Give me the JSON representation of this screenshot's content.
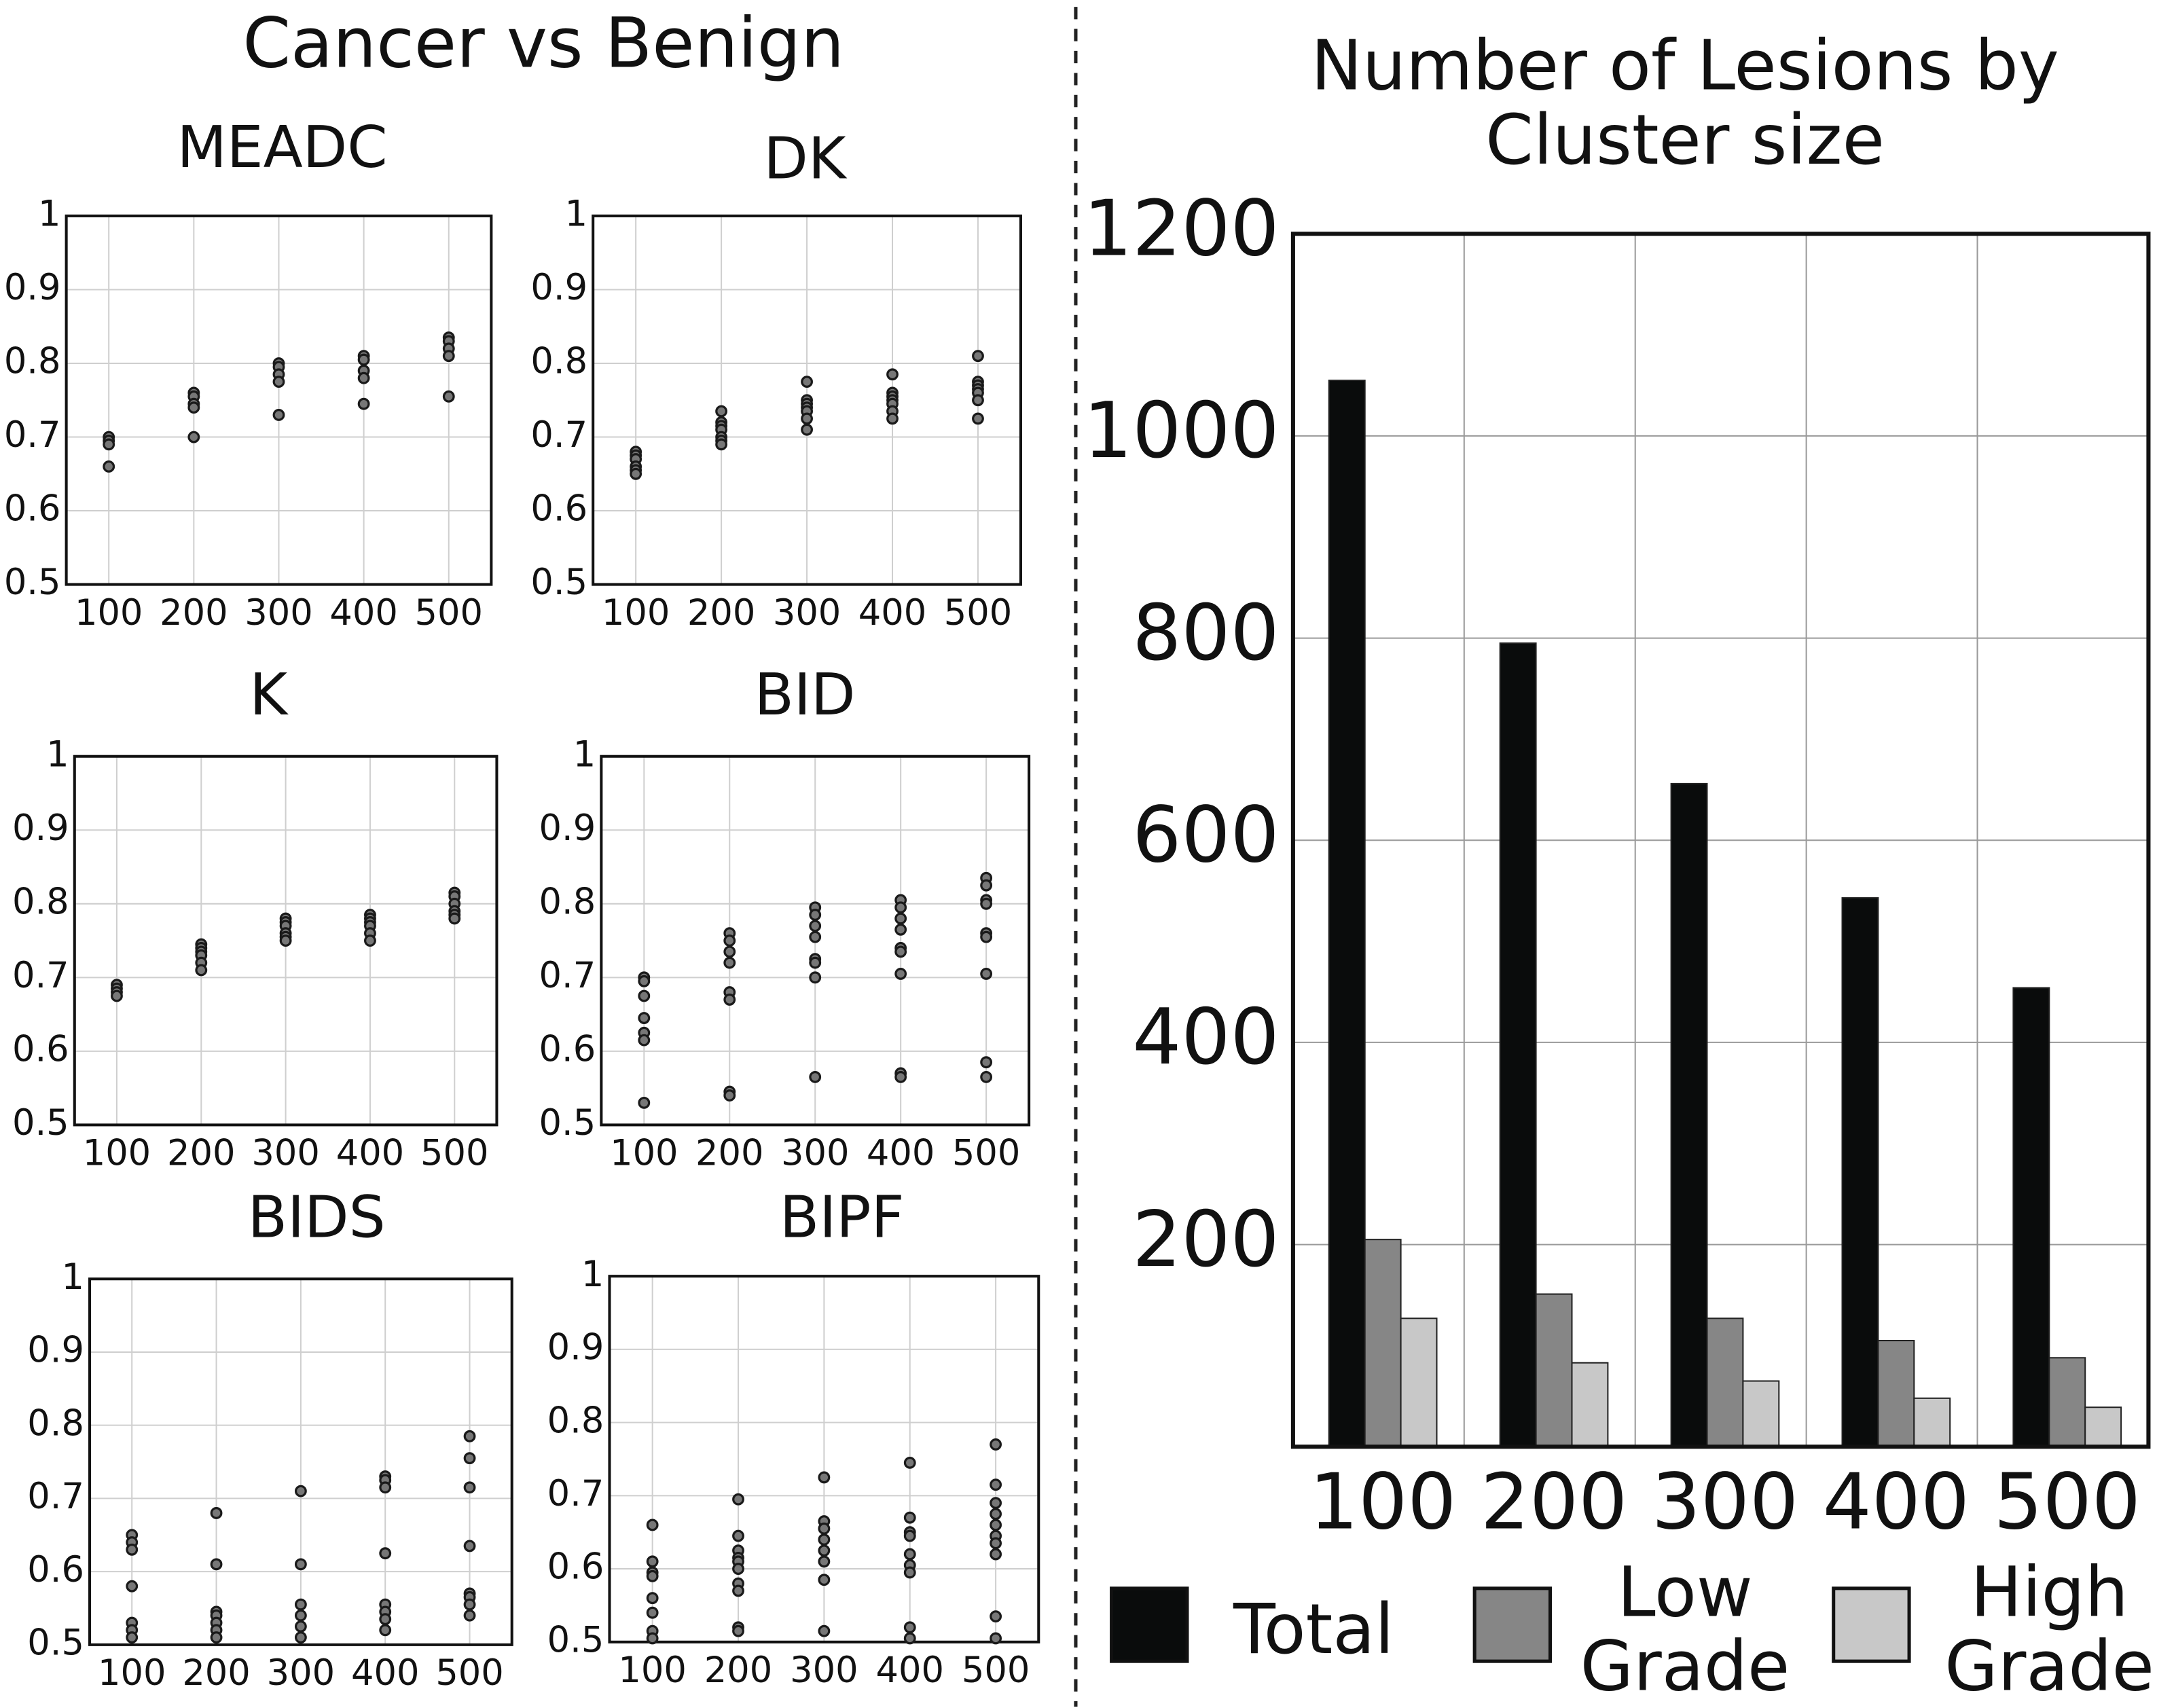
{
  "panel_title": "Cancer vs Benign",
  "chart_data": [
    {
      "type": "scatter",
      "title": "MEADC",
      "x": [
        100,
        100,
        100,
        100,
        200,
        200,
        200,
        200,
        200,
        300,
        300,
        300,
        300,
        300,
        400,
        400,
        400,
        400,
        400,
        500,
        500,
        500,
        500,
        500
      ],
      "values": [
        0.7,
        0.695,
        0.69,
        0.66,
        0.76,
        0.755,
        0.745,
        0.74,
        0.7,
        0.8,
        0.795,
        0.785,
        0.775,
        0.73,
        0.81,
        0.805,
        0.79,
        0.78,
        0.745,
        0.835,
        0.83,
        0.82,
        0.81,
        0.755
      ],
      "xlim": [
        50,
        550
      ],
      "ylim": [
        0.5,
        1
      ],
      "xticks": [
        100,
        200,
        300,
        400,
        500
      ],
      "yticks": [
        0.5,
        0.6,
        0.7,
        0.8,
        0.9,
        1
      ],
      "grid": true
    },
    {
      "type": "scatter",
      "title": "DK",
      "x": [
        100,
        100,
        100,
        100,
        100,
        100,
        200,
        200,
        200,
        200,
        200,
        200,
        200,
        300,
        300,
        300,
        300,
        300,
        300,
        300,
        400,
        400,
        400,
        400,
        400,
        400,
        400,
        500,
        500,
        500,
        500,
        500,
        500,
        500
      ],
      "values": [
        0.68,
        0.675,
        0.67,
        0.66,
        0.655,
        0.65,
        0.735,
        0.72,
        0.715,
        0.71,
        0.7,
        0.695,
        0.69,
        0.775,
        0.75,
        0.745,
        0.74,
        0.735,
        0.725,
        0.71,
        0.785,
        0.76,
        0.755,
        0.75,
        0.745,
        0.735,
        0.725,
        0.81,
        0.775,
        0.77,
        0.765,
        0.76,
        0.75,
        0.725
      ],
      "xlim": [
        50,
        550
      ],
      "ylim": [
        0.5,
        1
      ],
      "xticks": [
        100,
        200,
        300,
        400,
        500
      ],
      "yticks": [
        0.5,
        0.6,
        0.7,
        0.8,
        0.9,
        1
      ],
      "grid": true
    },
    {
      "type": "scatter",
      "title": "K",
      "x": [
        100,
        100,
        100,
        100,
        200,
        200,
        200,
        200,
        200,
        200,
        300,
        300,
        300,
        300,
        300,
        300,
        400,
        400,
        400,
        400,
        400,
        400,
        500,
        500,
        500,
        500,
        500,
        500
      ],
      "values": [
        0.69,
        0.685,
        0.68,
        0.675,
        0.745,
        0.74,
        0.735,
        0.73,
        0.72,
        0.71,
        0.78,
        0.775,
        0.77,
        0.76,
        0.755,
        0.75,
        0.785,
        0.78,
        0.775,
        0.77,
        0.76,
        0.75,
        0.815,
        0.81,
        0.8,
        0.79,
        0.785,
        0.78
      ],
      "xlim": [
        50,
        550
      ],
      "ylim": [
        0.5,
        1
      ],
      "xticks": [
        100,
        200,
        300,
        400,
        500
      ],
      "yticks": [
        0.5,
        0.6,
        0.7,
        0.8,
        0.9,
        1
      ],
      "grid": true
    },
    {
      "type": "scatter",
      "title": "BID",
      "x": [
        100,
        100,
        100,
        100,
        100,
        100,
        100,
        200,
        200,
        200,
        200,
        200,
        200,
        200,
        200,
        300,
        300,
        300,
        300,
        300,
        300,
        300,
        300,
        400,
        400,
        400,
        400,
        400,
        400,
        400,
        400,
        400,
        500,
        500,
        500,
        500,
        500,
        500,
        500,
        500,
        500
      ],
      "values": [
        0.7,
        0.695,
        0.675,
        0.645,
        0.625,
        0.615,
        0.53,
        0.76,
        0.75,
        0.735,
        0.72,
        0.68,
        0.67,
        0.545,
        0.54,
        0.795,
        0.785,
        0.77,
        0.755,
        0.725,
        0.72,
        0.7,
        0.565,
        0.805,
        0.795,
        0.78,
        0.765,
        0.74,
        0.735,
        0.705,
        0.57,
        0.565,
        0.835,
        0.825,
        0.805,
        0.8,
        0.76,
        0.755,
        0.705,
        0.585,
        0.565
      ],
      "xlim": [
        50,
        550
      ],
      "ylim": [
        0.5,
        1
      ],
      "xticks": [
        100,
        200,
        300,
        400,
        500
      ],
      "yticks": [
        0.5,
        0.6,
        0.7,
        0.8,
        0.9,
        1
      ],
      "grid": true
    },
    {
      "type": "scatter",
      "title": "BIDS",
      "x": [
        100,
        100,
        100,
        100,
        100,
        100,
        100,
        200,
        200,
        200,
        200,
        200,
        200,
        200,
        300,
        300,
        300,
        300,
        300,
        300,
        400,
        400,
        400,
        400,
        400,
        400,
        400,
        400,
        500,
        500,
        500,
        500,
        500,
        500,
        500,
        500
      ],
      "values": [
        0.65,
        0.64,
        0.63,
        0.58,
        0.53,
        0.52,
        0.51,
        0.68,
        0.61,
        0.545,
        0.54,
        0.53,
        0.52,
        0.51,
        0.71,
        0.61,
        0.555,
        0.54,
        0.525,
        0.51,
        0.73,
        0.725,
        0.715,
        0.625,
        0.555,
        0.545,
        0.535,
        0.52,
        0.785,
        0.755,
        0.715,
        0.635,
        0.57,
        0.565,
        0.555,
        0.54
      ],
      "xlim": [
        50,
        550
      ],
      "ylim": [
        0.5,
        1
      ],
      "xticks": [
        100,
        200,
        300,
        400,
        500
      ],
      "yticks": [
        0.5,
        0.6,
        0.7,
        0.8,
        0.9,
        1
      ],
      "grid": true
    },
    {
      "type": "scatter",
      "title": "BIPF",
      "x": [
        100,
        100,
        100,
        100,
        100,
        100,
        100,
        100,
        200,
        200,
        200,
        200,
        200,
        200,
        200,
        200,
        200,
        200,
        300,
        300,
        300,
        300,
        300,
        300,
        300,
        300,
        400,
        400,
        400,
        400,
        400,
        400,
        400,
        400,
        400,
        500,
        500,
        500,
        500,
        500,
        500,
        500,
        500,
        500,
        500
      ],
      "values": [
        0.66,
        0.61,
        0.595,
        0.59,
        0.56,
        0.54,
        0.515,
        0.505,
        0.695,
        0.645,
        0.625,
        0.615,
        0.61,
        0.6,
        0.58,
        0.57,
        0.52,
        0.515,
        0.725,
        0.665,
        0.655,
        0.64,
        0.625,
        0.61,
        0.585,
        0.515,
        0.745,
        0.67,
        0.65,
        0.645,
        0.62,
        0.605,
        0.595,
        0.52,
        0.505,
        0.77,
        0.715,
        0.69,
        0.675,
        0.66,
        0.645,
        0.635,
        0.62,
        0.535,
        0.505
      ],
      "xlim": [
        50,
        550
      ],
      "ylim": [
        0.5,
        1
      ],
      "xticks": [
        100,
        200,
        300,
        400,
        500
      ],
      "yticks": [
        0.5,
        0.6,
        0.7,
        0.8,
        0.9,
        1
      ],
      "grid": true
    },
    {
      "type": "bar",
      "title": "Number of Lesions by Cluster size",
      "categories": [
        "100",
        "200",
        "300",
        "400",
        "500"
      ],
      "series": [
        {
          "name": "Total",
          "color": "#0a0c0c",
          "values": [
            1055,
            795,
            656,
            543,
            454
          ]
        },
        {
          "name": "Low Grade",
          "color": "#868686",
          "values": [
            205,
            151,
            127,
            105,
            88
          ]
        },
        {
          "name": "High Grade",
          "color": "#c8c8c8",
          "values": [
            127,
            83,
            65,
            48,
            39
          ]
        }
      ],
      "ylim": [
        0,
        1200
      ],
      "yticks": [
        200,
        400,
        600,
        800,
        1000,
        1200
      ],
      "grid": true,
      "legend": "bottom"
    }
  ]
}
